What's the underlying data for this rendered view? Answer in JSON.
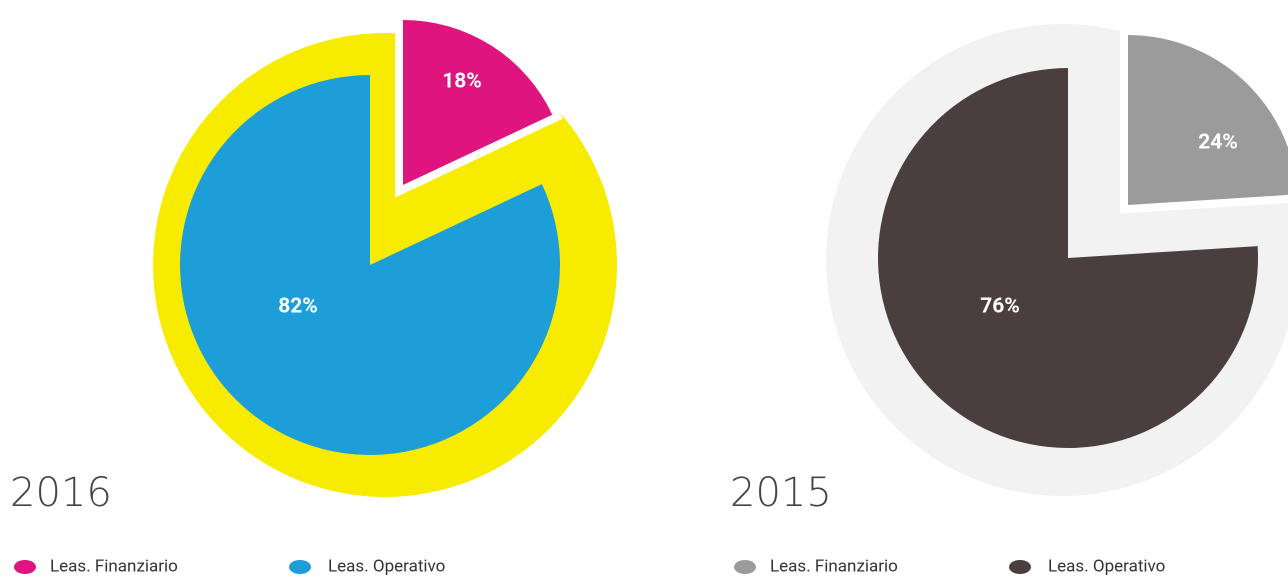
{
  "chart_data": [
    {
      "type": "pie",
      "title": "2016",
      "ring_color": "#f7ec00",
      "categories": [
        "Leas. Finanziario",
        "Leas. Operativo"
      ],
      "values": [
        18,
        82
      ],
      "value_labels": [
        "18%",
        "82%"
      ],
      "colors": [
        "#e0147f",
        "#1e9ed8"
      ]
    },
    {
      "type": "pie",
      "title": "2015",
      "ring_color": "#f2f2f2",
      "categories": [
        "Leas. Finanziario",
        "Leas. Operativo"
      ],
      "values": [
        24,
        76
      ],
      "value_labels": [
        "24%",
        "76%"
      ],
      "colors": [
        "#9b9b9b",
        "#4a3e3f"
      ]
    }
  ]
}
